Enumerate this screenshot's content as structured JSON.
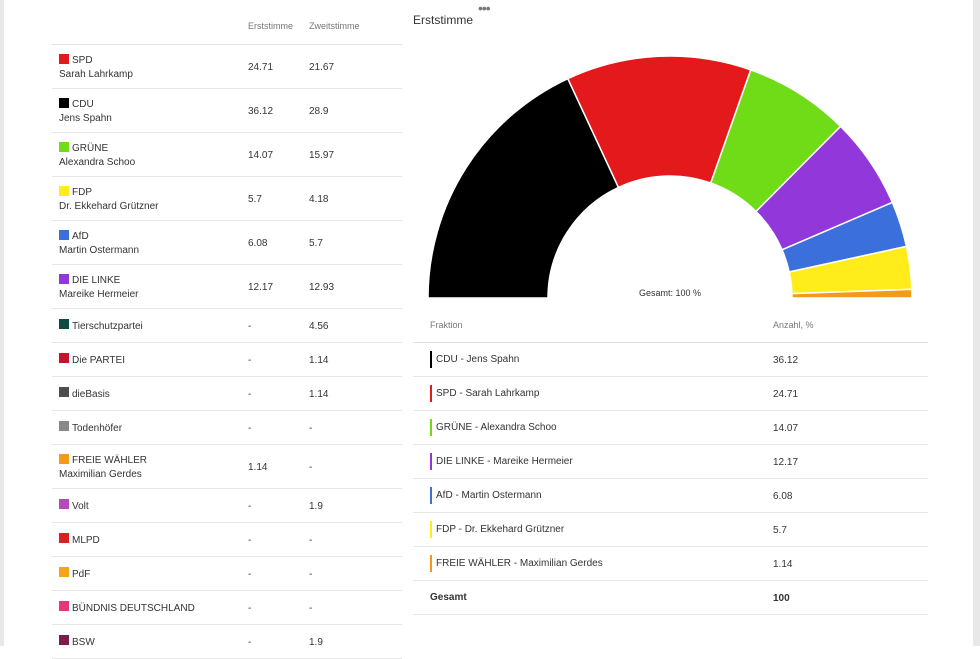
{
  "left_table": {
    "headers": [
      "Erststimme",
      "Zweitstimme"
    ],
    "rows": [
      {
        "party": "SPD",
        "candidate": "Sarah Lahrkamp",
        "erst": "24.71",
        "zweit": "21.67",
        "color": "#e3191c"
      },
      {
        "party": "CDU",
        "candidate": "Jens Spahn",
        "erst": "36.12",
        "zweit": "28.9",
        "color": "#000000"
      },
      {
        "party": "GRÜNE",
        "candidate": "Alexandra Schoo",
        "erst": "14.07",
        "zweit": "15.97",
        "color": "#6fdc17"
      },
      {
        "party": "FDP",
        "candidate": "Dr. Ekkehard Grützner",
        "erst": "5.7",
        "zweit": "4.18",
        "color": "#ffec1a"
      },
      {
        "party": "AfD",
        "candidate": "Martin Ostermann",
        "erst": "6.08",
        "zweit": "5.7",
        "color": "#3a6fdc"
      },
      {
        "party": "DIE LINKE",
        "candidate": "Mareike Hermeier",
        "erst": "12.17",
        "zweit": "12.93",
        "color": "#9237d9"
      },
      {
        "party": "Tierschutzpartei",
        "candidate": "",
        "erst": "-",
        "zweit": "4.56",
        "color": "#0e4a45"
      },
      {
        "party": "Die PARTEI",
        "candidate": "",
        "erst": "-",
        "zweit": "1.14",
        "color": "#c41230"
      },
      {
        "party": "dieBasis",
        "candidate": "",
        "erst": "-",
        "zweit": "1.14",
        "color": "#4d4d4d"
      },
      {
        "party": "Todenhöfer",
        "candidate": "",
        "erst": "-",
        "zweit": "-",
        "color": "#888888"
      },
      {
        "party": "FREIE WÄHLER",
        "candidate": "Maximilian Gerdes",
        "erst": "1.14",
        "zweit": "-",
        "color": "#f39a1a"
      },
      {
        "party": "Volt",
        "candidate": "",
        "erst": "-",
        "zweit": "1.9",
        "color": "#b44ab8"
      },
      {
        "party": "MLPD",
        "candidate": "",
        "erst": "-",
        "zweit": "-",
        "color": "#d8221f"
      },
      {
        "party": "PdF",
        "candidate": "",
        "erst": "-",
        "zweit": "-",
        "color": "#f5a21c"
      },
      {
        "party": "BÜNDNIS DEUTSCHLAND",
        "candidate": "",
        "erst": "-",
        "zweit": "-",
        "color": "#e8357a"
      },
      {
        "party": "BSW",
        "candidate": "",
        "erst": "-",
        "zweit": "1.9",
        "color": "#7a1d4a"
      }
    ]
  },
  "chart": {
    "title": "Erststimme",
    "menu_icon": "more-dots-icon",
    "center_label": "Gesamt: 100 %"
  },
  "chart_data": {
    "type": "pie",
    "variant": "half-donut",
    "title": "Erststimme",
    "annotation": "Gesamt: 100 %",
    "slices": [
      {
        "label": "CDU - Jens Spahn",
        "value": 36.12,
        "color": "#000000"
      },
      {
        "label": "SPD - Sarah Lahrkamp",
        "value": 24.71,
        "color": "#e3191c"
      },
      {
        "label": "GRÜNE - Alexandra Schoo",
        "value": 14.07,
        "color": "#6fdc17"
      },
      {
        "label": "DIE LINKE - Mareike Hermeier",
        "value": 12.17,
        "color": "#9237d9"
      },
      {
        "label": "AfD - Martin Ostermann",
        "value": 6.08,
        "color": "#3a6fdc"
      },
      {
        "label": "FDP - Dr. Ekkehard Grützner",
        "value": 5.7,
        "color": "#ffec1a"
      },
      {
        "label": "FREIE WÄHLER - Maximilian Gerdes",
        "value": 1.14,
        "color": "#f39a1a"
      }
    ]
  },
  "right_table": {
    "headers": {
      "fraktion": "Fraktion",
      "anzahl": "Anzahl, %"
    },
    "rows": [
      {
        "label": "CDU - Jens Spahn",
        "value": "36.12",
        "color": "#000000"
      },
      {
        "label": "SPD - Sarah Lahrkamp",
        "value": "24.71",
        "color": "#e3191c"
      },
      {
        "label": "GRÜNE - Alexandra Schoo",
        "value": "14.07",
        "color": "#6fdc17"
      },
      {
        "label": "DIE LINKE - Mareike Hermeier",
        "value": "12.17",
        "color": "#9237d9"
      },
      {
        "label": "AfD - Martin Ostermann",
        "value": "6.08",
        "color": "#3a6fdc"
      },
      {
        "label": "FDP - Dr. Ekkehard Grützner",
        "value": "5.7",
        "color": "#ffec1a"
      },
      {
        "label": "FREIE WÄHLER - Maximilian Gerdes",
        "value": "1.14",
        "color": "#f39a1a"
      }
    ],
    "total": {
      "label": "Gesamt",
      "value": "100"
    }
  }
}
